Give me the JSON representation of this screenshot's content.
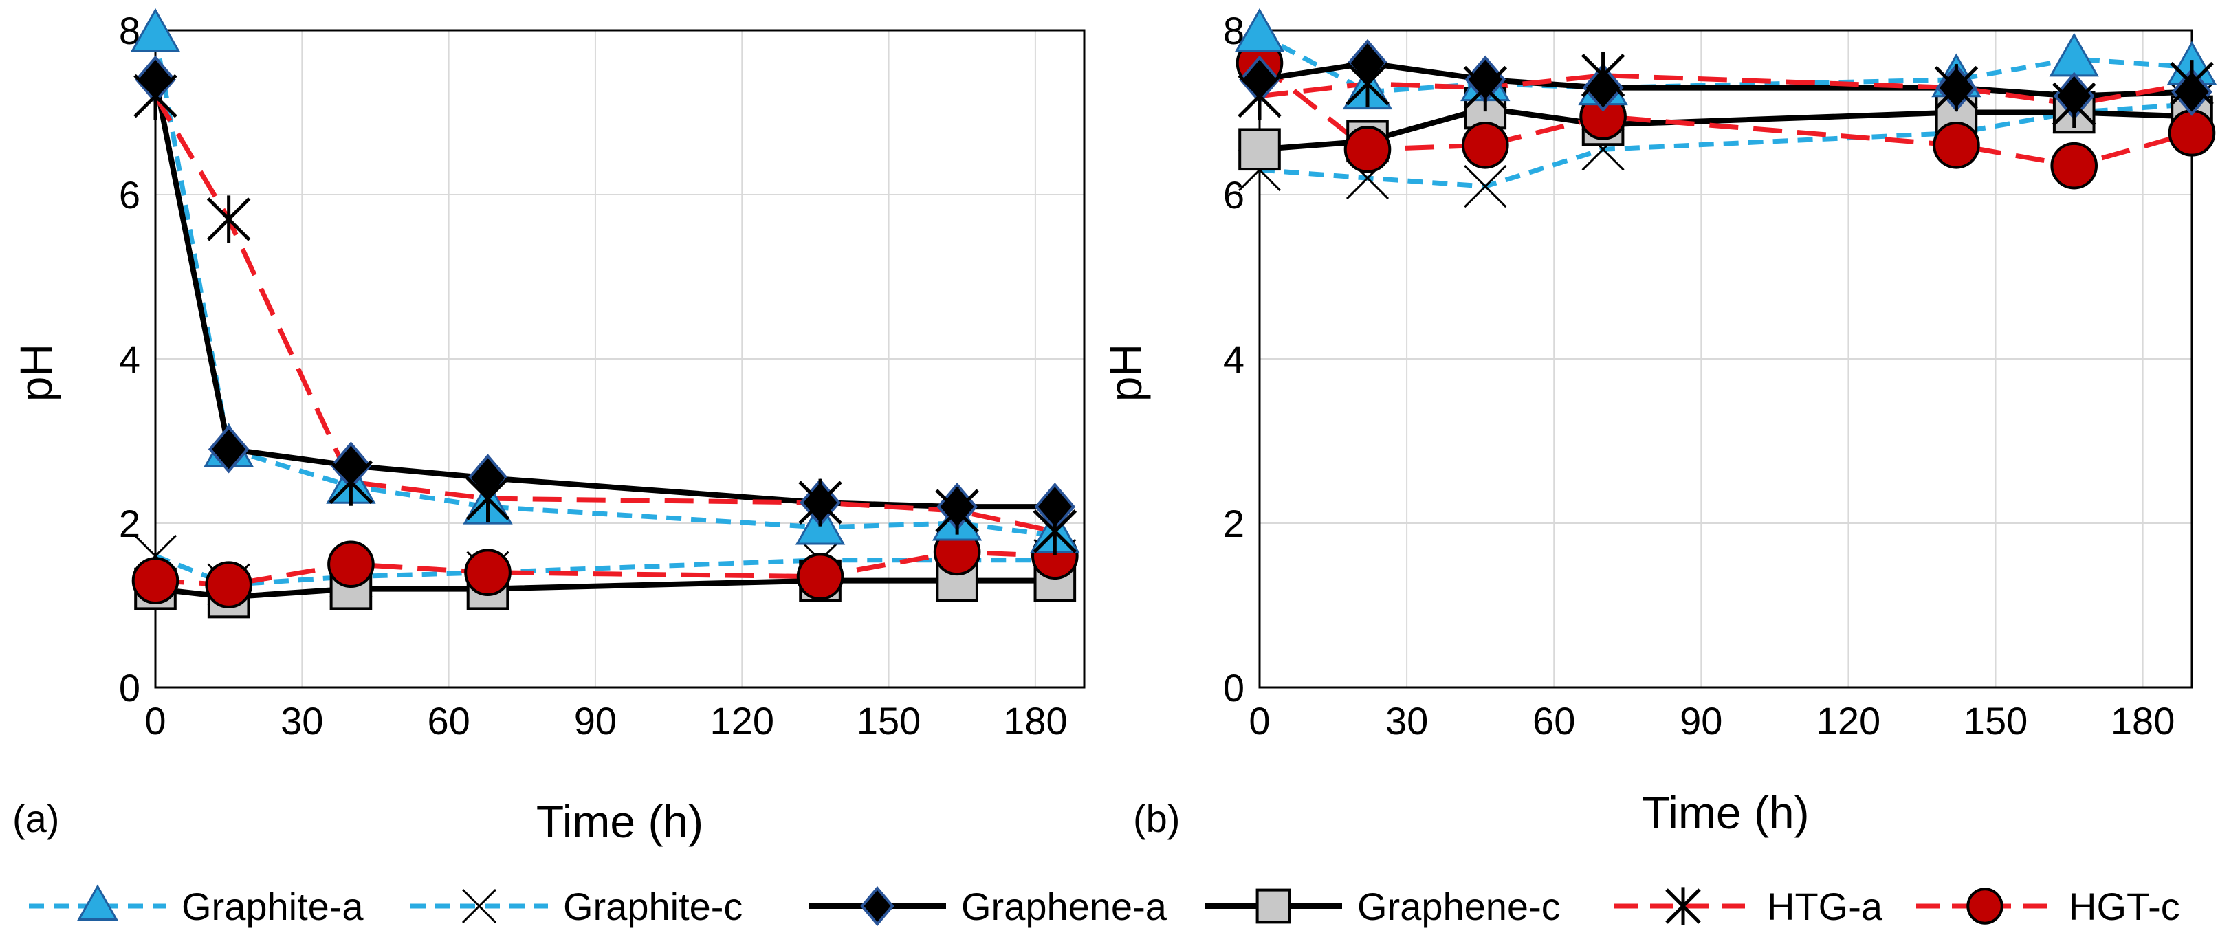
{
  "chart_data": [
    {
      "type": "line",
      "panel_label": "(a)",
      "xlabel": "Time (h)",
      "ylabel": "pH",
      "xlim": [
        0,
        190
      ],
      "ylim": [
        0,
        8
      ],
      "xticks": [
        0,
        30,
        60,
        90,
        120,
        150,
        180
      ],
      "yticks": [
        0,
        2,
        4,
        6,
        8
      ],
      "xtick_labels": [
        "0",
        "30",
        "60",
        "90",
        "120",
        "150",
        "180"
      ],
      "ytick_labels": [
        "0",
        "2",
        "4",
        "6",
        "8"
      ],
      "grid": true,
      "series": [
        {
          "name": "Graphite-a",
          "x": [
            0,
            15,
            40,
            68,
            136,
            164,
            184
          ],
          "y": [
            7.95,
            2.9,
            2.45,
            2.2,
            1.95,
            2.0,
            1.85
          ]
        },
        {
          "name": "Graphite-c",
          "x": [
            0,
            15,
            40,
            68,
            136,
            164,
            184
          ],
          "y": [
            1.6,
            1.25,
            1.35,
            1.4,
            1.55,
            1.55,
            1.55
          ]
        },
        {
          "name": "Graphene-a",
          "x": [
            0,
            15,
            40,
            68,
            136,
            164,
            184
          ],
          "y": [
            7.4,
            2.9,
            2.7,
            2.55,
            2.25,
            2.2,
            2.2
          ]
        },
        {
          "name": "Graphene-c",
          "x": [
            0,
            15,
            40,
            68,
            136,
            164,
            184
          ],
          "y": [
            1.2,
            1.1,
            1.2,
            1.2,
            1.3,
            1.3,
            1.3
          ]
        },
        {
          "name": "HTG-a",
          "x": [
            0,
            15,
            40,
            68,
            136,
            164,
            184
          ],
          "y": [
            7.2,
            5.7,
            2.5,
            2.3,
            2.25,
            2.15,
            1.9
          ]
        },
        {
          "name": "HGT-c",
          "x": [
            0,
            15,
            40,
            68,
            136,
            164,
            184
          ],
          "y": [
            1.3,
            1.25,
            1.5,
            1.4,
            1.35,
            1.65,
            1.6
          ]
        }
      ]
    },
    {
      "type": "line",
      "panel_label": "(b)",
      "xlabel": "Time (h)",
      "ylabel": "pH",
      "xlim": [
        0,
        190
      ],
      "ylim": [
        0,
        8
      ],
      "xticks": [
        0,
        30,
        60,
        90,
        120,
        150,
        180
      ],
      "yticks": [
        0,
        2,
        4,
        6,
        8
      ],
      "xtick_labels": [
        "0",
        "30",
        "60",
        "90",
        "120",
        "150",
        "180"
      ],
      "ytick_labels": [
        "0",
        "2",
        "4",
        "6",
        "8"
      ],
      "grid": true,
      "series": [
        {
          "name": "Graphite-a",
          "x": [
            0,
            22,
            46,
            70,
            142,
            166,
            190
          ],
          "y": [
            7.95,
            7.25,
            7.35,
            7.3,
            7.4,
            7.65,
            7.55
          ]
        },
        {
          "name": "Graphite-c",
          "x": [
            0,
            22,
            46,
            70,
            142,
            166,
            190
          ],
          "y": [
            6.3,
            6.2,
            6.1,
            6.55,
            6.75,
            7.0,
            7.1
          ]
        },
        {
          "name": "Graphene-a",
          "x": [
            0,
            22,
            46,
            70,
            142,
            166,
            190
          ],
          "y": [
            7.4,
            7.6,
            7.4,
            7.3,
            7.3,
            7.2,
            7.25
          ]
        },
        {
          "name": "Graphene-c",
          "x": [
            0,
            22,
            46,
            70,
            142,
            166,
            190
          ],
          "y": [
            6.55,
            6.65,
            7.05,
            6.85,
            7.0,
            7.0,
            6.95
          ]
        },
        {
          "name": "HTG-a",
          "x": [
            0,
            22,
            46,
            70,
            142,
            166,
            190
          ],
          "y": [
            7.2,
            7.35,
            7.3,
            7.45,
            7.3,
            7.1,
            7.35
          ]
        },
        {
          "name": "HGT-c",
          "x": [
            0,
            22,
            46,
            70,
            142,
            166,
            190
          ],
          "y": [
            7.6,
            6.55,
            6.6,
            6.95,
            6.6,
            6.35,
            6.75
          ]
        }
      ]
    }
  ],
  "legend": [
    {
      "name": "Graphite-a",
      "line_color": "#29ABE2",
      "dash": "dash",
      "marker": "triangle",
      "marker_fill": "#29ABE2"
    },
    {
      "name": "Graphite-c",
      "line_color": "#29ABE2",
      "dash": "dash",
      "marker": "x",
      "marker_fill": "none"
    },
    {
      "name": "Graphene-a",
      "line_color": "#000000",
      "dash": "solid",
      "marker": "diamond",
      "marker_fill": "#000000"
    },
    {
      "name": "Graphene-c",
      "line_color": "#000000",
      "dash": "solid",
      "marker": "square",
      "marker_fill": "#C8C8C8"
    },
    {
      "name": "HTG-a",
      "line_color": "#EE1C25",
      "dash": "dash",
      "marker": "star",
      "marker_fill": "none"
    },
    {
      "name": "HGT-c",
      "line_color": "#EE1C25",
      "dash": "dash",
      "marker": "circle",
      "marker_fill": "#C00000"
    }
  ]
}
